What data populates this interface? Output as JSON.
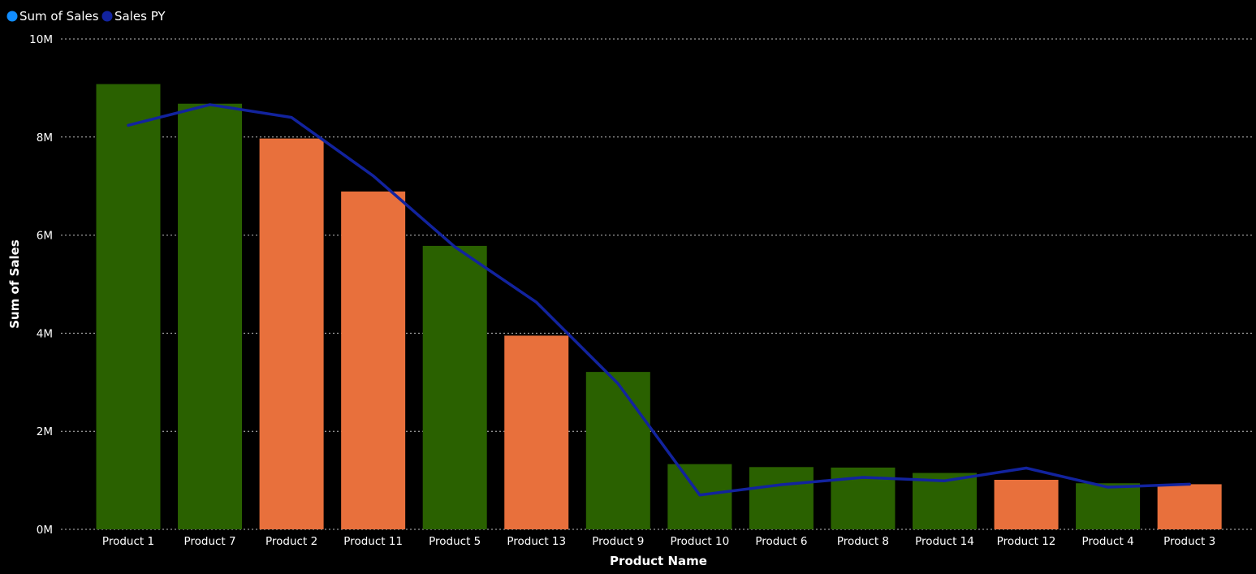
{
  "chart_data": {
    "type": "bar",
    "xlabel": "Product Name",
    "ylabel": "Sum of Sales",
    "ylim": [
      0,
      10000000
    ],
    "yticks": [
      0,
      2000000,
      4000000,
      6000000,
      8000000,
      10000000
    ],
    "ytick_labels": [
      "0M",
      "2M",
      "4M",
      "6M",
      "8M",
      "10M"
    ],
    "grid": true,
    "legend_position": "top-left",
    "categories": [
      "Product 1",
      "Product 7",
      "Product 2",
      "Product 11",
      "Product 5",
      "Product 13",
      "Product 9",
      "Product 10",
      "Product 6",
      "Product 8",
      "Product 14",
      "Product 12",
      "Product 4",
      "Product 3"
    ],
    "series": [
      {
        "name": "Sum of Sales",
        "type": "bar",
        "legend_color": "#118DFF",
        "values": [
          9080000,
          8680000,
          7970000,
          6890000,
          5780000,
          3950000,
          3210000,
          1330000,
          1270000,
          1260000,
          1150000,
          1010000,
          940000,
          920000
        ],
        "bar_colors": [
          "#2A6100",
          "#2A6100",
          "#E8703C",
          "#E8703C",
          "#2A6100",
          "#E8703C",
          "#2A6100",
          "#2A6100",
          "#2A6100",
          "#2A6100",
          "#2A6100",
          "#E8703C",
          "#2A6100",
          "#E8703C"
        ]
      },
      {
        "name": "Sales PY",
        "type": "line",
        "color": "#12239E",
        "values": [
          8240000,
          8660000,
          8400000,
          7210000,
          5760000,
          4630000,
          2970000,
          700000,
          910000,
          1060000,
          990000,
          1250000,
          860000,
          920000
        ]
      }
    ]
  }
}
